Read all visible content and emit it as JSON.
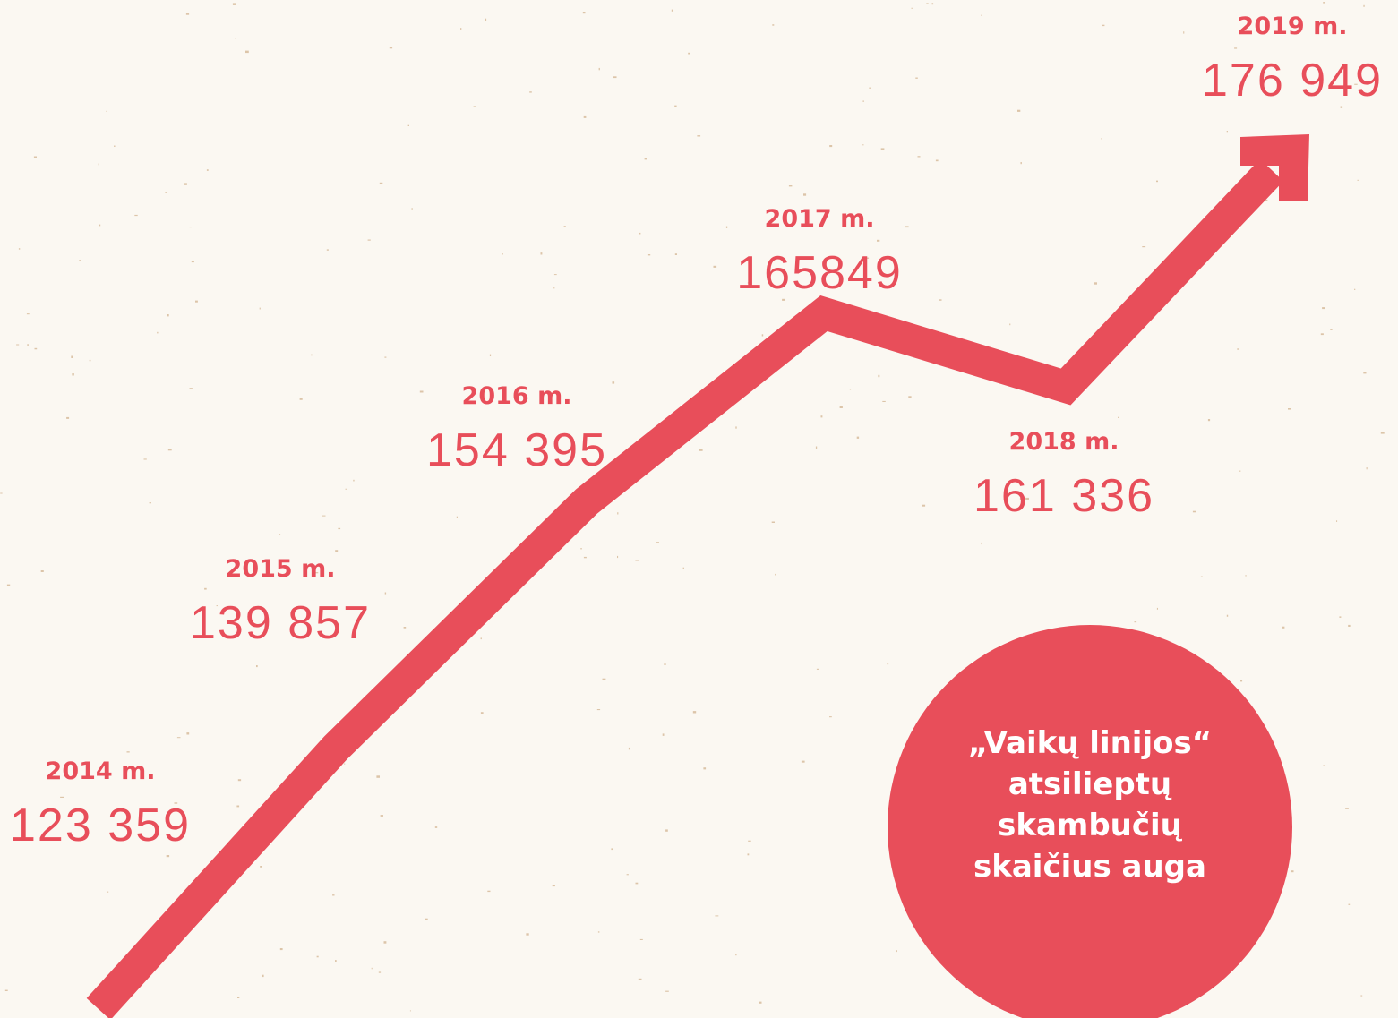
{
  "items": [
    {
      "year": "2014 m.",
      "value": "123 359"
    },
    {
      "year": "2015 m.",
      "value": "139 857"
    },
    {
      "year": "2016 m.",
      "value": "154 395"
    },
    {
      "year": "2017 m.",
      "value": "165849"
    },
    {
      "year": "2018 m.",
      "value": "161 336"
    },
    {
      "year": "2019 m.",
      "value": "176 949"
    }
  ],
  "caption": [
    "„Vaikų linijos“",
    "atsilieptų",
    "skambučių",
    "skaičius auga"
  ]
}
